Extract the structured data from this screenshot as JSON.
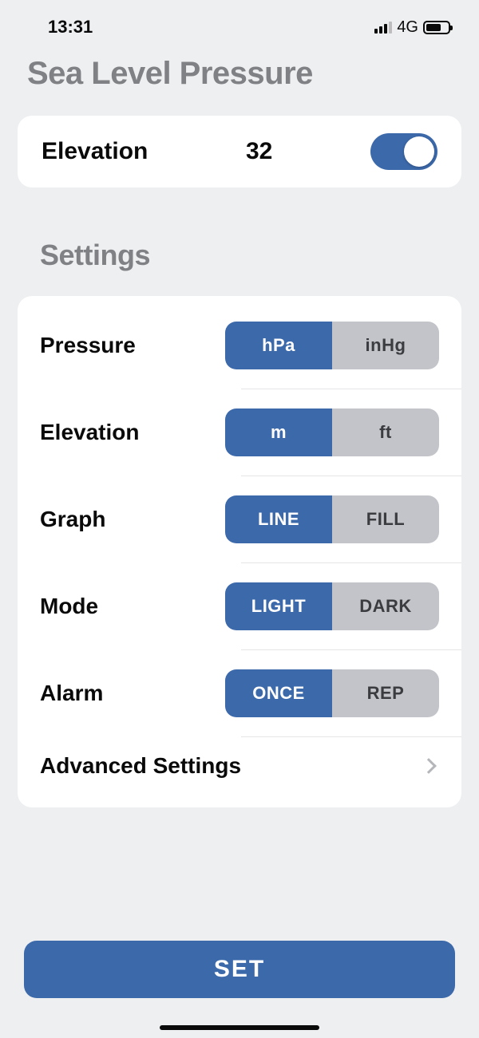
{
  "status": {
    "time": "13:31",
    "network": "4G"
  },
  "page": {
    "title": "Sea Level Pressure"
  },
  "elevation": {
    "label": "Elevation",
    "value": "32",
    "toggled": true
  },
  "sections": {
    "settings_title": "Settings"
  },
  "settings": {
    "pressure": {
      "label": "Pressure",
      "opt_active": "hPa",
      "opt_inactive": "inHg"
    },
    "elevation": {
      "label": "Elevation",
      "opt_active": "m",
      "opt_inactive": "ft"
    },
    "graph": {
      "label": "Graph",
      "opt_active": "LINE",
      "opt_inactive": "FILL"
    },
    "mode": {
      "label": "Mode",
      "opt_active": "LIGHT",
      "opt_inactive": "DARK"
    },
    "alarm": {
      "label": "Alarm",
      "opt_active": "ONCE",
      "opt_inactive": "REP"
    }
  },
  "advanced": {
    "label": "Advanced Settings"
  },
  "actions": {
    "set": "SET"
  },
  "colors": {
    "background": "#eeeff1",
    "card": "#ffffff",
    "primary": "#3c69aa",
    "segment_inactive_bg": "#c2c4c9",
    "segment_inactive_text": "#3a3c3f",
    "title_grey": "#808184",
    "text": "#0a0a0a",
    "separator": "#e5e5e8",
    "chevron": "#b4b6ba"
  }
}
